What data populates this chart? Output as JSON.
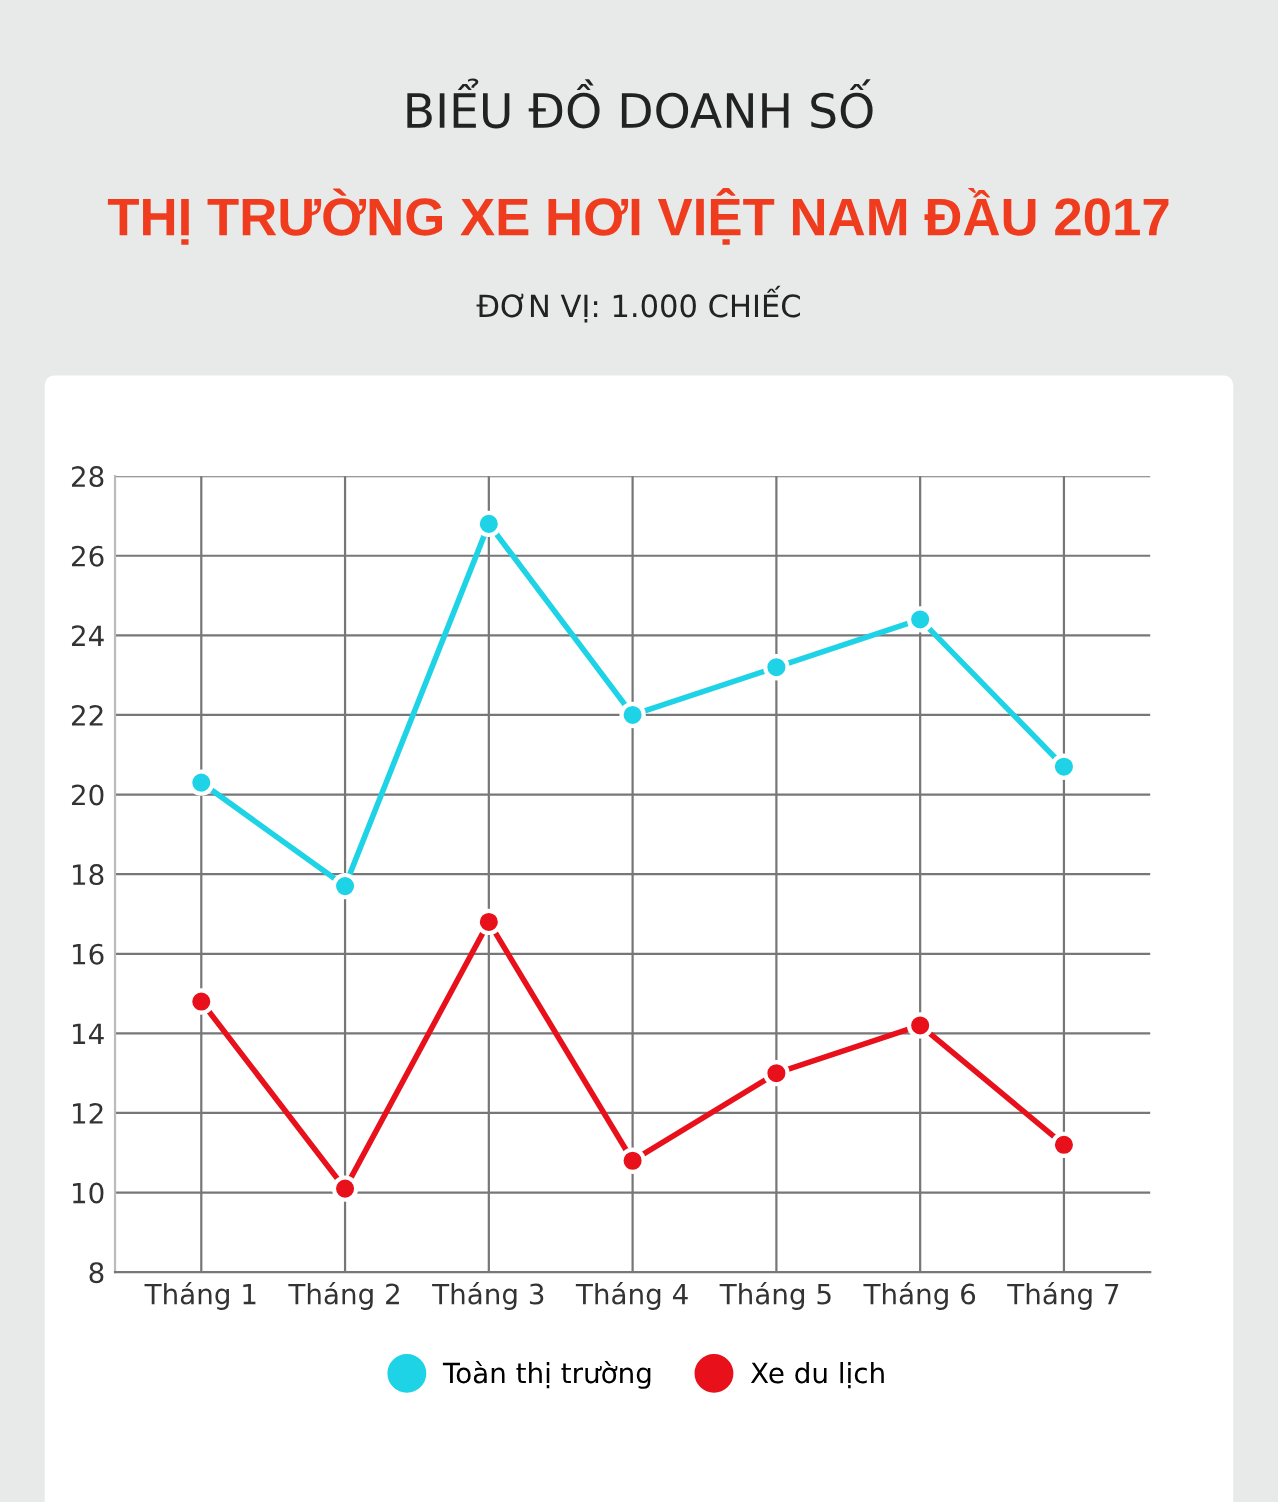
{
  "chart_data": {
    "type": "line",
    "title": "BIỂU ĐỒ DOANH SỐ",
    "subtitle": "THỊ TRƯỜNG XE HƠI VIỆT NAM ĐẦU 2017",
    "annotations": [
      "ĐƠN VỊ: 1.000 CHIẾC"
    ],
    "categories": [
      "Tháng 1",
      "Tháng 2",
      "Tháng 3",
      "Tháng 4",
      "Tháng 5",
      "Tháng 6",
      "Tháng 7"
    ],
    "series": [
      {
        "name": "Toàn thị trường",
        "color": "#1fd3e6",
        "values": [
          20.3,
          17.7,
          26.8,
          22.0,
          23.2,
          24.4,
          20.7
        ]
      },
      {
        "name": "Xe du lịch",
        "color": "#e8111b",
        "values": [
          14.8,
          10.1,
          16.8,
          10.8,
          13.0,
          14.2,
          11.2
        ]
      }
    ],
    "ylim": [
      8,
      28
    ],
    "yticks": [
      8,
      10,
      12,
      14,
      16,
      18,
      20,
      22,
      24,
      26,
      28
    ],
    "grid": true,
    "legend": "bottom",
    "marker": "circle",
    "line_style": "solid"
  }
}
